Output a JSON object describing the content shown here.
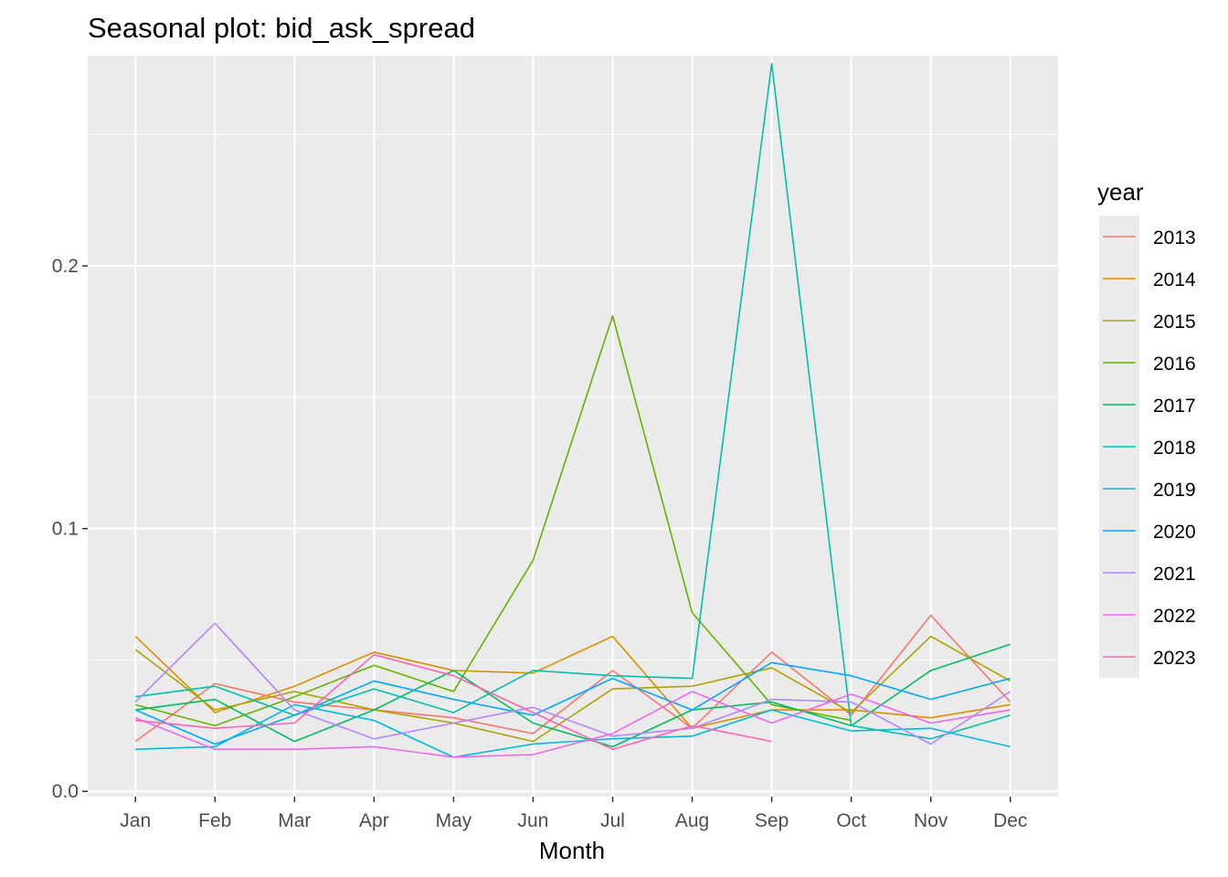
{
  "chart_data": {
    "type": "line",
    "title": "Seasonal plot: bid_ask_spread",
    "xlabel": "Month",
    "ylabel": "",
    "categories": [
      "Jan",
      "Feb",
      "Mar",
      "Apr",
      "May",
      "Jun",
      "Jul",
      "Aug",
      "Sep",
      "Oct",
      "Nov",
      "Dec"
    ],
    "ylim": [
      -0.002,
      0.28
    ],
    "yticks": [
      0.0,
      0.1,
      0.2
    ],
    "ytick_labels": [
      "0.0",
      "0.1",
      "0.2"
    ],
    "grid": true,
    "legend": {
      "title": "year",
      "placement": "right"
    },
    "series": [
      {
        "name": "2013",
        "color": "#F8766D",
        "values": [
          0.019,
          0.041,
          0.034,
          0.031,
          0.028,
          0.022,
          0.046,
          0.024,
          0.053,
          0.029,
          0.067,
          0.034
        ]
      },
      {
        "name": "2014",
        "color": "#DB8E00",
        "values": [
          0.059,
          0.03,
          0.04,
          0.053,
          0.046,
          0.045,
          0.059,
          0.024,
          0.031,
          0.031,
          0.028,
          0.033
        ]
      },
      {
        "name": "2015",
        "color": "#AEA200",
        "values": [
          0.054,
          0.031,
          0.038,
          0.031,
          0.026,
          0.019,
          0.039,
          0.04,
          0.047,
          0.03,
          0.059,
          0.042
        ]
      },
      {
        "name": "2016",
        "color": "#64B200",
        "values": [
          0.033,
          0.025,
          0.036,
          0.048,
          0.038,
          0.088,
          0.181,
          0.068,
          0.033,
          0.027,
          null,
          null
        ]
      },
      {
        "name": "2017",
        "color": "#00BD5C",
        "values": [
          0.031,
          0.035,
          0.019,
          0.031,
          0.046,
          0.026,
          0.017,
          0.031,
          0.034,
          0.025,
          0.046,
          0.056
        ]
      },
      {
        "name": "2018",
        "color": "#00C1A7",
        "values": [
          0.036,
          0.04,
          0.029,
          0.039,
          0.03,
          0.046,
          0.044,
          0.043,
          0.277,
          0.025,
          0.02,
          0.029
        ]
      },
      {
        "name": "2019",
        "color": "#00BADE",
        "values": [
          0.016,
          0.017,
          0.033,
          0.027,
          0.013,
          0.018,
          0.02,
          0.021,
          0.031,
          0.023,
          0.024,
          0.017
        ]
      },
      {
        "name": "2020",
        "color": "#00A6FF",
        "values": [
          0.031,
          0.018,
          0.029,
          0.042,
          0.035,
          0.029,
          0.043,
          0.031,
          0.049,
          0.044,
          0.035,
          0.043
        ]
      },
      {
        "name": "2021",
        "color": "#B385FF",
        "values": [
          0.034,
          0.064,
          0.031,
          0.02,
          0.026,
          0.032,
          0.021,
          0.024,
          0.035,
          0.034,
          0.018,
          0.038
        ]
      },
      {
        "name": "2022",
        "color": "#EF67EB",
        "values": [
          0.028,
          0.016,
          0.016,
          0.017,
          0.013,
          0.014,
          0.022,
          0.038,
          0.026,
          0.037,
          0.026,
          0.031
        ]
      },
      {
        "name": "2023",
        "color": "#FF63B6",
        "values": [
          0.027,
          0.024,
          0.026,
          0.052,
          0.044,
          0.03,
          0.016,
          0.025,
          0.019,
          null,
          null,
          null
        ]
      }
    ]
  }
}
